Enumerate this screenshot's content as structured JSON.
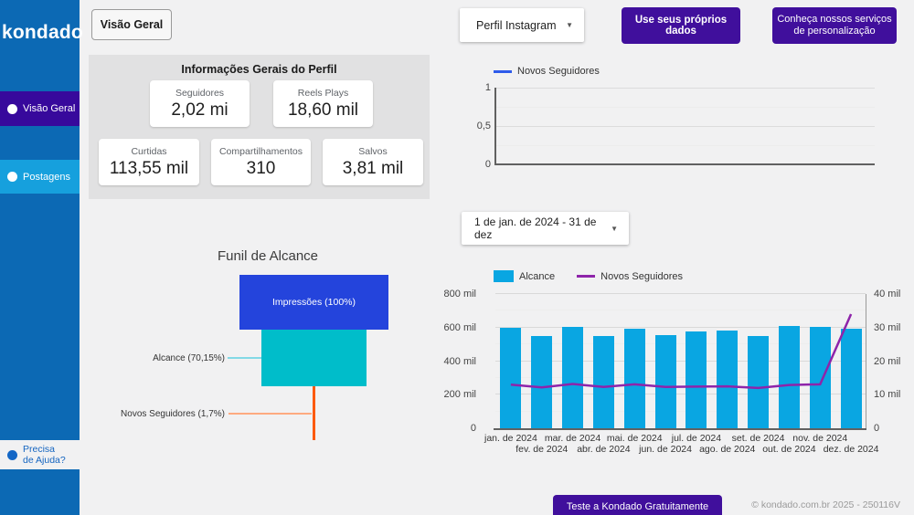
{
  "sidebar": {
    "logo": "kondado",
    "items": [
      {
        "label": "Visão Geral",
        "active": true
      },
      {
        "label": "Postagens",
        "active": false
      }
    ],
    "help_lines": [
      "Precisa",
      "de Ajuda?"
    ]
  },
  "topbar": {
    "view_button": "Visão Geral",
    "profile_select": {
      "value": "Perfil Instagram"
    },
    "own_data_button": "Use seus próprios dados",
    "services_button_lines": [
      "Conheça nossos serviços",
      "de personalização"
    ]
  },
  "profile_info": {
    "title": "Informações Gerais do Perfil",
    "metrics": [
      {
        "label": "Seguidores",
        "value": "2,02 mi"
      },
      {
        "label": "Reels Plays",
        "value": "18,60 mil"
      },
      {
        "label": "Curtidas",
        "value": "113,55 mil"
      },
      {
        "label": "Compartilhamentos",
        "value": "310"
      },
      {
        "label": "Salvos",
        "value": "3,81 mil"
      }
    ]
  },
  "date_range_select": {
    "value": "1 de jan. de 2024 - 31 de dez"
  },
  "chart_data": [
    {
      "type": "line",
      "title": "",
      "legend_position": "top",
      "series": [
        {
          "name": "Novos Seguidores",
          "color": "#2e5bea",
          "values": []
        }
      ],
      "x": [],
      "ylim": [
        0,
        1
      ],
      "yticks": [
        "0",
        "0,5",
        "1"
      ],
      "grid": true,
      "note": "chart rendered empty (no data plotted)"
    },
    {
      "type": "funnel",
      "title": "Funil de Alcance",
      "stages": [
        {
          "label": "Impressões (100%)",
          "pct": 100,
          "color": "#2444dc"
        },
        {
          "label": "Alcance (70,15%)",
          "pct": 70.15,
          "color": "#00bdca"
        },
        {
          "label": "Novos Seguidores (1,7%)",
          "pct": 1.7,
          "color": "#fc5a0e"
        }
      ]
    },
    {
      "type": "bar+line",
      "legend_position": "top",
      "grid": true,
      "categories": [
        "jan. de 2024",
        "fev. de 2024",
        "mar. de 2024",
        "abr. de 2024",
        "mai. de 2024",
        "jun. de 2024",
        "jul. de 2024",
        "ago. de 2024",
        "set. de 2024",
        "out. de 2024",
        "nov. de 2024",
        "dez. de 2024"
      ],
      "series": [
        {
          "name": "Alcance",
          "type": "bar",
          "axis": "left",
          "color": "#09a6e2",
          "unit": "mil",
          "values": [
            598,
            551,
            603,
            552,
            595,
            554,
            578,
            583,
            548,
            608,
            604,
            593
          ]
        },
        {
          "name": "Novos Seguidores",
          "type": "line",
          "axis": "right",
          "color": "#8e24aa",
          "unit": "mil",
          "values": [
            13,
            12.2,
            13.2,
            12.3,
            13.1,
            12.3,
            12.4,
            12.5,
            12,
            12.9,
            13.1,
            34
          ]
        }
      ],
      "left_axis": {
        "ticks": [
          "0",
          "200 mil",
          "400 mil",
          "600 mil",
          "800 mil"
        ],
        "max": 800
      },
      "right_axis": {
        "ticks": [
          "0",
          "10 mil",
          "20 mil",
          "30 mil",
          "40 mil"
        ],
        "max": 40
      }
    }
  ],
  "cta_button": "Teste a Kondado Gratuitamente",
  "footer": "© kondado.com.br 2025 - 250116V",
  "theme": {
    "sidebar_blue": "#0c69b4",
    "active_item_indigo": "#37099c",
    "postagens_blue": "#16a0dd",
    "button_purple": "#400f9c",
    "page_bg": "#f1f1f2",
    "panel_gray": "#e1e1e2"
  }
}
